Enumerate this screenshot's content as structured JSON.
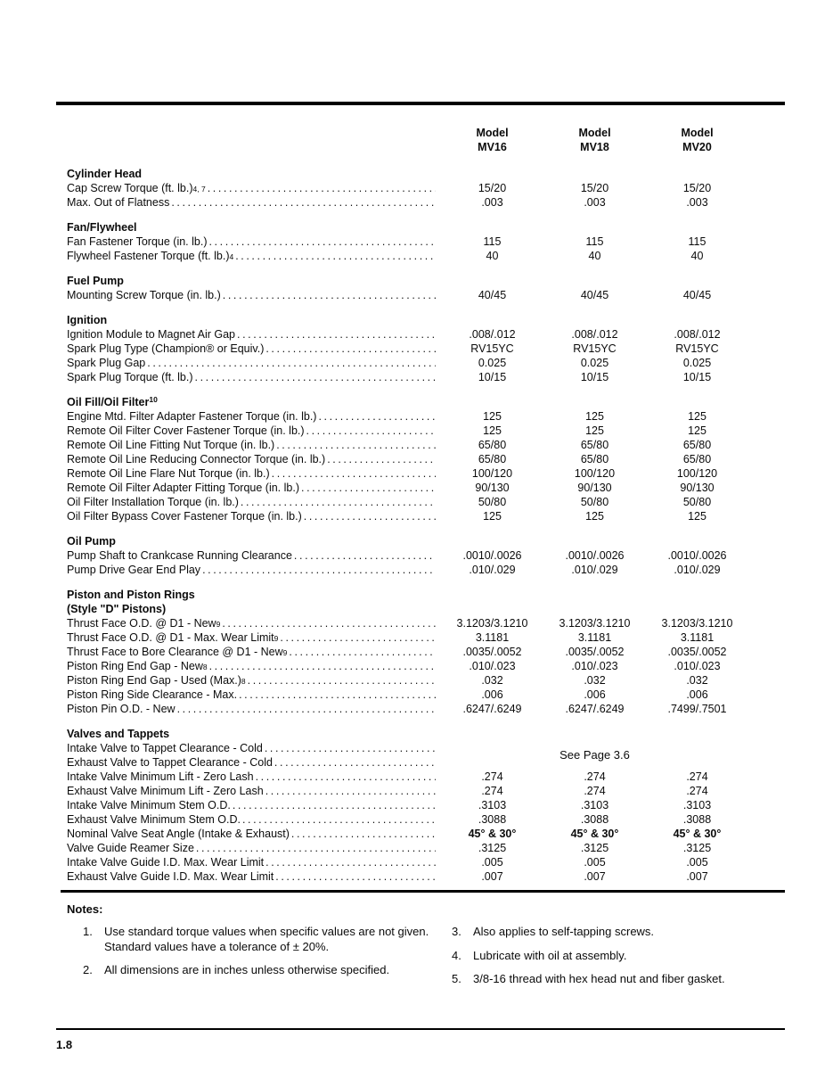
{
  "page": {
    "page_number": "1.8"
  },
  "table": {
    "col_headers": [
      {
        "line1": "Model",
        "line2": "MV16"
      },
      {
        "line1": "Model",
        "line2": "MV18"
      },
      {
        "line1": "Model",
        "line2": "MV20"
      }
    ],
    "sections": [
      {
        "heading": "Cylinder Head",
        "rows": [
          {
            "label": "Cap Screw Torque (ft. lb.)",
            "sup": "4, 7",
            "values": [
              "15/20",
              "15/20",
              "15/20"
            ]
          },
          {
            "label": "Max. Out of Flatness",
            "values": [
              ".003",
              ".003",
              ".003"
            ]
          }
        ]
      },
      {
        "heading": "Fan/Flywheel",
        "rows": [
          {
            "label": "Fan Fastener Torque (in. lb.)",
            "values": [
              "115",
              "115",
              "115"
            ]
          },
          {
            "label": "Flywheel Fastener Torque (ft. lb.)",
            "sup": "4",
            "values": [
              "40",
              "40",
              "40"
            ]
          }
        ]
      },
      {
        "heading": "Fuel Pump",
        "rows": [
          {
            "label": "Mounting Screw Torque (in. lb.)",
            "values": [
              "40/45",
              "40/45",
              "40/45"
            ]
          }
        ]
      },
      {
        "heading": "Ignition",
        "rows": [
          {
            "label": "Ignition Module to Magnet Air Gap",
            "values": [
              ".008/.012",
              ".008/.012",
              ".008/.012"
            ]
          },
          {
            "label": "Spark Plug Type (Champion® or Equiv.)",
            "values": [
              "RV15YC",
              "RV15YC",
              "RV15YC"
            ]
          },
          {
            "label": "Spark Plug Gap",
            "values": [
              "0.025",
              "0.025",
              "0.025"
            ]
          },
          {
            "label": "Spark Plug Torque (ft. lb.)",
            "values": [
              "10/15",
              "10/15",
              "10/15"
            ]
          }
        ]
      },
      {
        "heading": "Oil Fill/Oil Filter",
        "heading_sup": "10",
        "rows": [
          {
            "label": "Engine Mtd. Filter Adapter Fastener Torque (in. lb.)",
            "values": [
              "125",
              "125",
              "125"
            ]
          },
          {
            "label": "Remote Oil Filter Cover Fastener Torque (in. lb.)",
            "values": [
              "125",
              "125",
              "125"
            ]
          },
          {
            "label": "Remote Oil Line Fitting Nut Torque (in. lb.)",
            "values": [
              "65/80",
              "65/80",
              "65/80"
            ]
          },
          {
            "label": "Remote Oil Line Reducing Connector Torque (in. lb.)",
            "values": [
              "65/80",
              "65/80",
              "65/80"
            ]
          },
          {
            "label": "Remote Oil Line Flare Nut Torque (in. lb.)",
            "values": [
              "100/120",
              "100/120",
              "100/120"
            ]
          },
          {
            "label": "Remote Oil Filter Adapter Fitting Torque (in. lb.)",
            "values": [
              "90/130",
              "90/130",
              "90/130"
            ]
          },
          {
            "label": "Oil Filter Installation Torque (in. lb.)",
            "values": [
              "50/80",
              "50/80",
              "50/80"
            ]
          },
          {
            "label": "Oil Filter Bypass Cover Fastener Torque (in. lb.)",
            "values": [
              "125",
              "125",
              "125"
            ]
          }
        ]
      },
      {
        "heading": "Oil Pump",
        "rows": [
          {
            "label": "Pump Shaft to Crankcase Running Clearance",
            "values": [
              ".0010/.0026",
              ".0010/.0026",
              ".0010/.0026"
            ]
          },
          {
            "label": "Pump Drive Gear End Play",
            "values": [
              ".010/.029",
              ".010/.029",
              ".010/.029"
            ]
          }
        ]
      },
      {
        "heading": "Piston and Piston Rings",
        "heading2": "(Style \"D\" Pistons)",
        "rows": [
          {
            "label": "Thrust Face O.D. @ D1 - New",
            "sup": "9",
            "values": [
              "3.1203/3.1210",
              "3.1203/3.1210",
              "3.1203/3.1210"
            ]
          },
          {
            "label": "Thrust Face O.D. @ D1 - Max. Wear Limit",
            "sup": "9",
            "values": [
              "3.1181",
              "3.1181",
              "3.1181"
            ]
          },
          {
            "label": "Thrust Face to Bore Clearance @ D1 - New",
            "sup": "9",
            "values": [
              ".0035/.0052",
              ".0035/.0052",
              ".0035/.0052"
            ]
          },
          {
            "label": "Piston Ring End Gap - New",
            "sup": "8",
            "values": [
              ".010/.023",
              ".010/.023",
              ".010/.023"
            ]
          },
          {
            "label": "Piston Ring End Gap - Used (Max.)",
            "sup": "8",
            "values": [
              ".032",
              ".032",
              ".032"
            ]
          },
          {
            "label": "Piston Ring Side Clearance - Max.",
            "values": [
              ".006",
              ".006",
              ".006"
            ]
          },
          {
            "label": "Piston Pin O.D. - New",
            "values": [
              ".6247/.6249",
              ".6247/.6249",
              ".7499/.7501"
            ]
          }
        ]
      },
      {
        "heading": "Valves and Tappets",
        "rows": [
          {
            "label": "Intake Valve to Tappet Clearance - Cold",
            "span_value": "See Page 3.6"
          },
          {
            "label": "Exhaust Valve to Tappet Clearance - Cold",
            "values": [
              "",
              "",
              ""
            ]
          },
          {
            "label": "Intake Valve Minimum Lift - Zero Lash",
            "values": [
              ".274",
              ".274",
              ".274"
            ]
          },
          {
            "label": "Exhaust Valve Minimum Lift - Zero Lash",
            "values": [
              ".274",
              ".274",
              ".274"
            ]
          },
          {
            "label": "Intake Valve Minimum Stem O.D.",
            "values": [
              ".3103",
              ".3103",
              ".3103"
            ]
          },
          {
            "label": "Exhaust Valve Minimum Stem O.D.",
            "values": [
              ".3088",
              ".3088",
              ".3088"
            ]
          },
          {
            "label": "Nominal Valve Seat Angle (Intake & Exhaust)",
            "values_bold": true,
            "values": [
              "45° & 30°",
              "45° & 30°",
              "45° & 30°"
            ]
          },
          {
            "label": "Valve Guide Reamer Size",
            "values": [
              ".3125",
              ".3125",
              ".3125"
            ]
          },
          {
            "label": "Intake Valve Guide I.D. Max. Wear Limit",
            "values": [
              ".005",
              ".005",
              ".005"
            ]
          },
          {
            "label": "Exhaust Valve Guide I.D. Max. Wear Limit",
            "values": [
              ".007",
              ".007",
              ".007"
            ]
          }
        ]
      }
    ]
  },
  "notes": {
    "heading": "Notes:",
    "left": [
      {
        "num": "1.",
        "text": "Use standard torque values when specific values are not given. Standard values have a tolerance of ± 20%."
      },
      {
        "num": "2.",
        "text": "All dimensions are in inches unless otherwise specified."
      }
    ],
    "right": [
      {
        "num": "3.",
        "text": "Also applies to self-tapping screws."
      },
      {
        "num": "4.",
        "text": "Lubricate with oil at assembly."
      },
      {
        "num": "5.",
        "text": "3/8-16 thread with hex head nut and fiber gasket."
      }
    ]
  }
}
